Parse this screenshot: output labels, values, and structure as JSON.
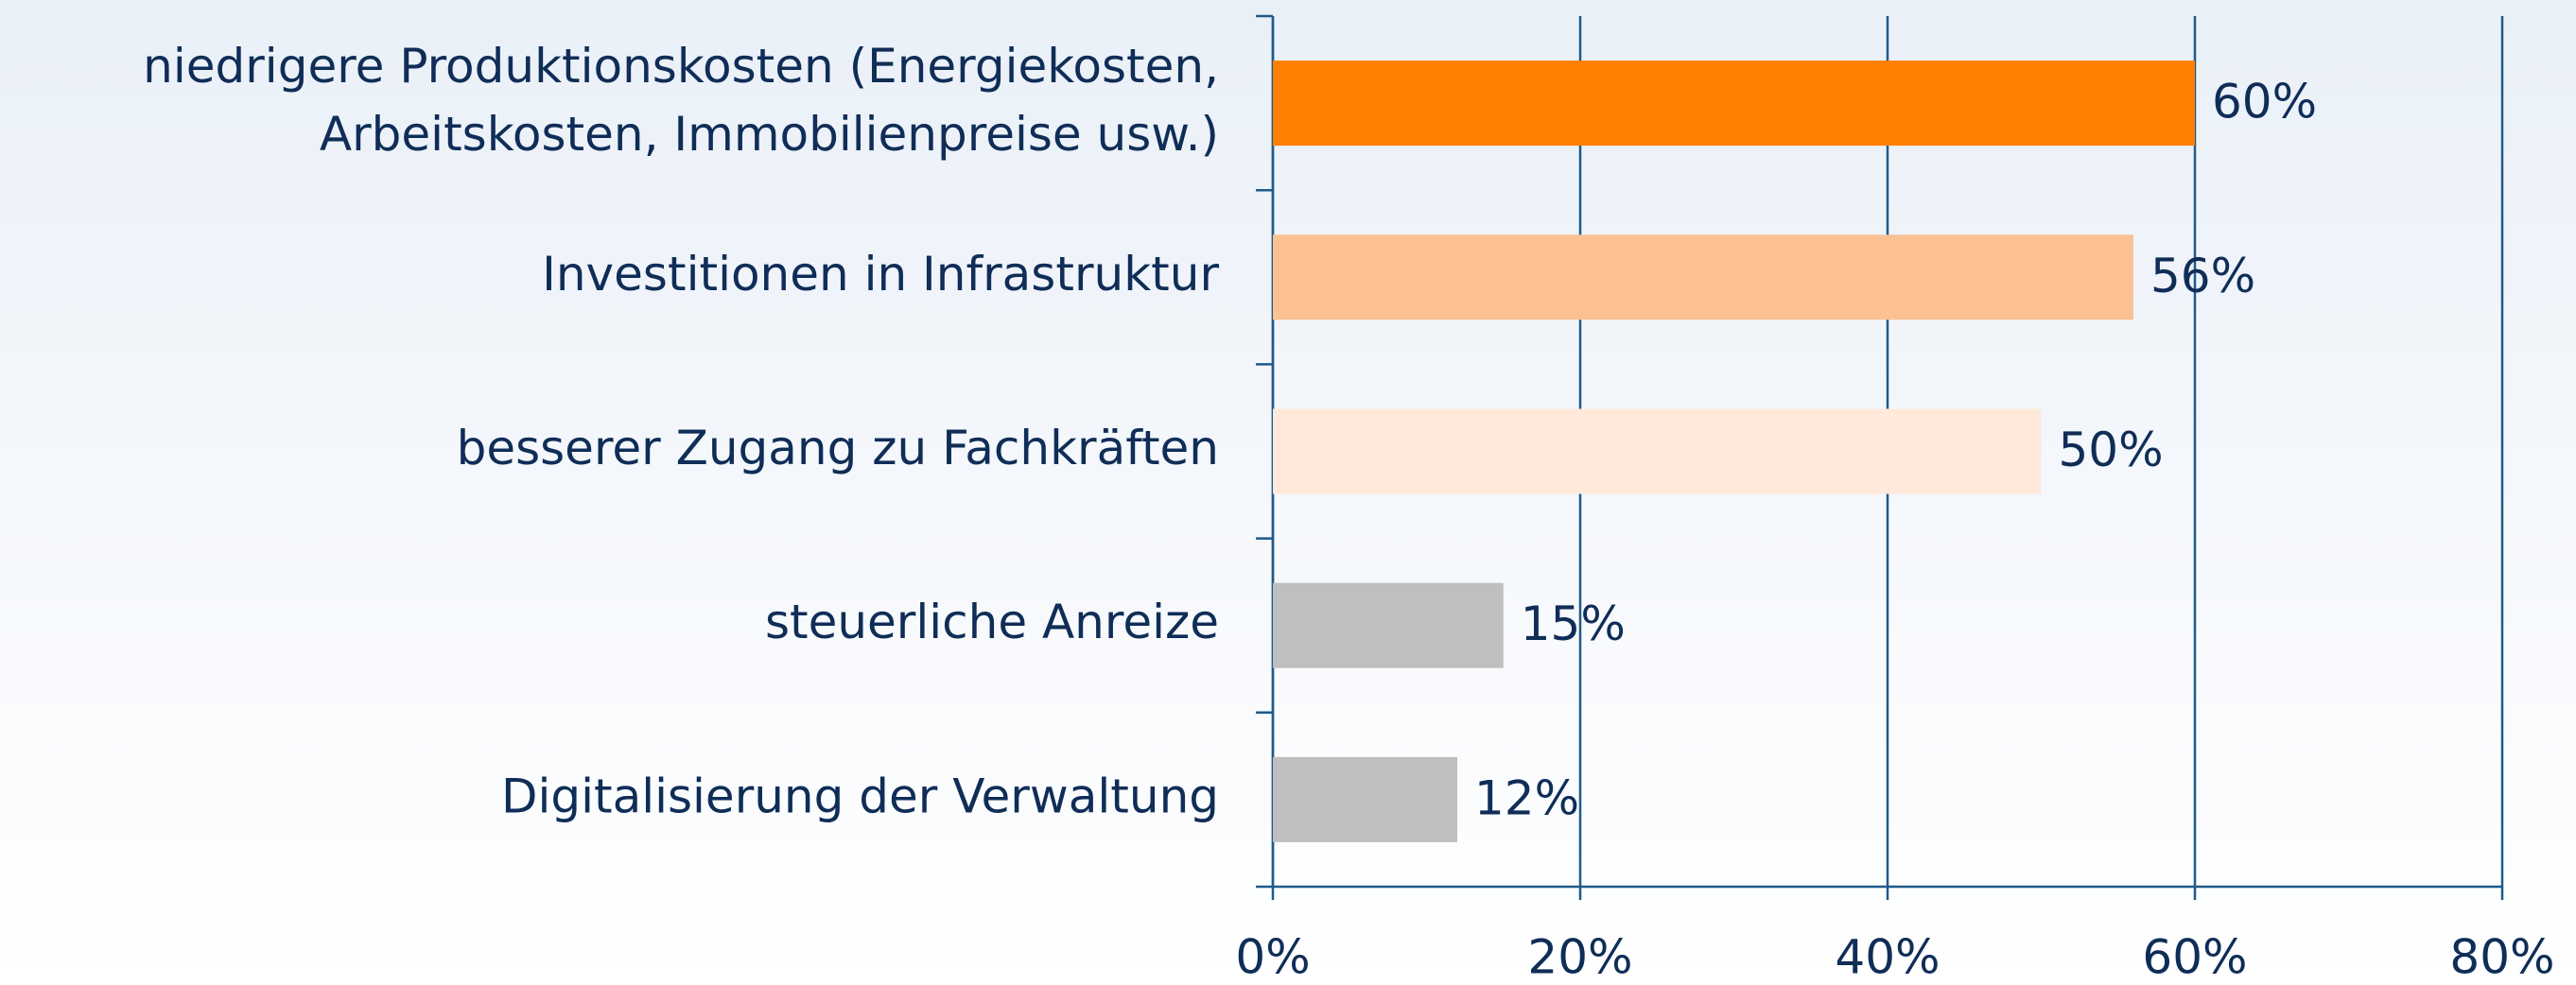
{
  "chart_data": {
    "type": "bar",
    "orientation": "horizontal",
    "categories": [
      "niedrigere Produktionskosten (Energiekosten,\nArbeitskosten, Immobilienpreise usw.)",
      "Investitionen in Infrastruktur",
      "besserer Zugang zu Fachkräften",
      "steuerliche Anreize",
      "Digitalisierung der Verwaltung"
    ],
    "values": [
      60,
      56,
      50,
      15,
      12
    ],
    "value_labels": [
      "60%",
      "56%",
      "50%",
      "15%",
      "12%"
    ],
    "colors": [
      "#ff7f00",
      "#fbc193",
      "#ffe9da",
      "#bfbfbf",
      "#bfbfbf"
    ],
    "xlim": [
      0,
      80
    ],
    "xticks": [
      {
        "value": 0,
        "label": "0%"
      },
      {
        "value": 20,
        "label": "20%"
      },
      {
        "value": 40,
        "label": "40%"
      },
      {
        "value": 60,
        "label": "60%"
      },
      {
        "value": 80,
        "label": "80%"
      }
    ],
    "grid": true
  }
}
